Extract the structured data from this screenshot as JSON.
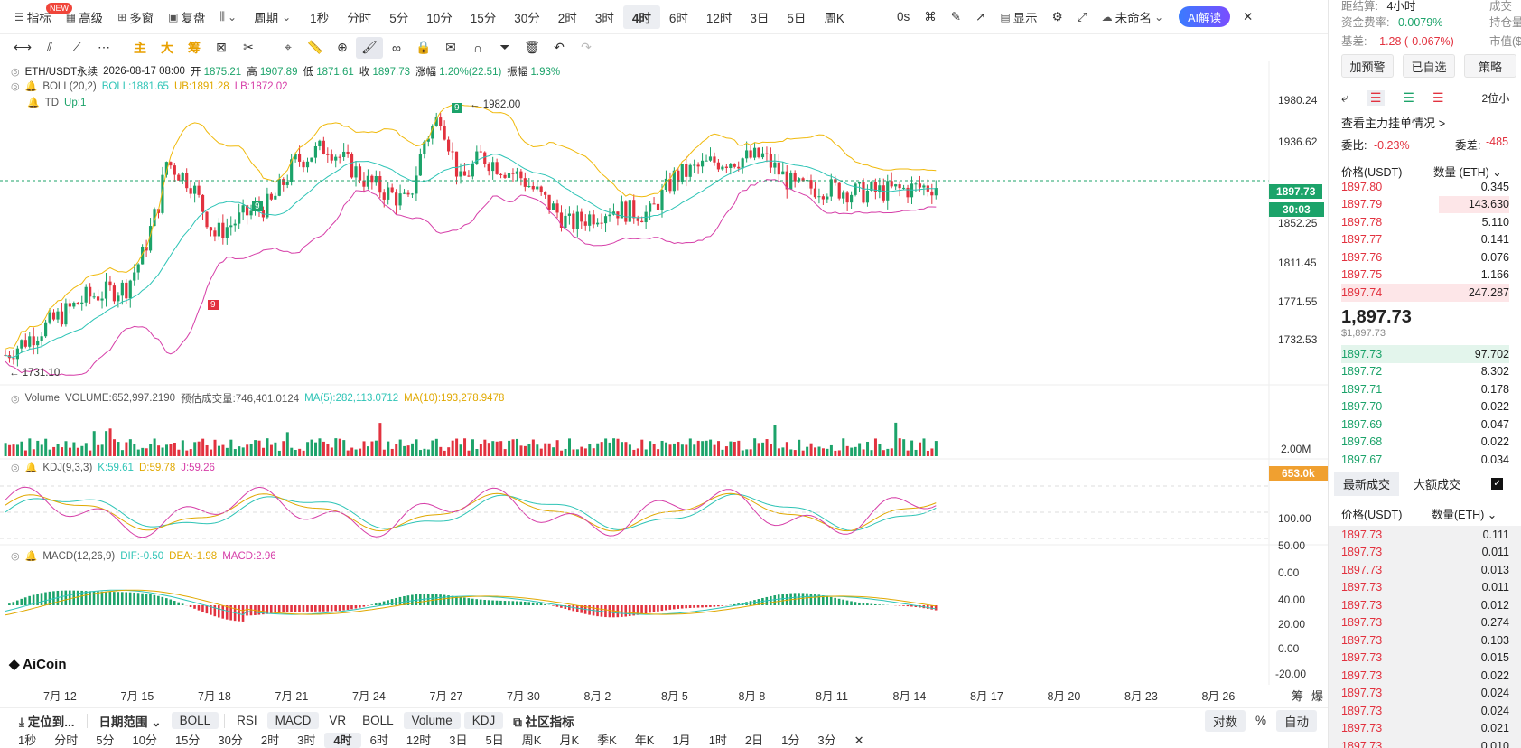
{
  "toolbar": {
    "new_badge": "NEW",
    "items": [
      "指标",
      "高级",
      "多窗",
      "复盘",
      "",
      "周期"
    ],
    "timeframes": [
      "1秒",
      "分时",
      "5分",
      "10分",
      "15分",
      "30分",
      "2时",
      "3时",
      "4时",
      "6时",
      "12时",
      "3日",
      "5日",
      "周K"
    ],
    "active_timeframe": "4时",
    "right": [
      "0s",
      "显示",
      "未命名"
    ],
    "ai_label": "AI解读"
  },
  "drawbar": {
    "labels": [
      "主",
      "大",
      "筹"
    ]
  },
  "legend": {
    "symbol_line": {
      "symbol": "ETH/USDT永续",
      "date": "2026-08-17 08:00",
      "open_label": "开",
      "open": "1875.21",
      "high_label": "高",
      "high": "1907.89",
      "low_label": "低",
      "low": "1871.61",
      "close_label": "收",
      "close": "1897.73",
      "chg_label": "涨幅",
      "chg": "1.20%(22.51)",
      "amp_label": "振幅",
      "amp": "1.93%"
    },
    "boll": {
      "name": "BOLL(20,2)",
      "boll": "BOLL:1881.65",
      "ub": "UB:1891.28",
      "lb": "LB:1872.02"
    },
    "td": {
      "name": "TD",
      "up": "Up:1"
    },
    "volume": {
      "name": "Volume",
      "vol": "VOLUME:652,997.2190",
      "est": "预估成交量:746,401.0124",
      "ma5": "MA(5):282,113.0712",
      "ma10": "MA(10):193,278.9478"
    },
    "kdj": {
      "name": "KDJ(9,3,3)",
      "k": "K:59.61",
      "d": "D:59.78",
      "j": "J:59.26"
    },
    "macd": {
      "name": "MACD(12,26,9)",
      "dif": "DIF:-0.50",
      "dea": "DEA:-1.98",
      "macd": "MACD:2.96"
    }
  },
  "price_axis": [
    "1980.24",
    "1936.62",
    "1852.25",
    "1811.45",
    "1771.55",
    "1732.53"
  ],
  "current_price_tag": "1897.73",
  "countdown_tag": "30:03",
  "annotations": {
    "high": "1982.00",
    "low": "1731.10",
    "td9_a": "9",
    "td9_b": "9",
    "td9_c": "9"
  },
  "volume_axis": {
    "top": "2.00M",
    "tag": "653.0k"
  },
  "kdj_axis": [
    "100.00",
    "50.00",
    "0.00"
  ],
  "macd_axis": [
    "40.00",
    "20.00",
    "0.00",
    "-20.00"
  ],
  "dates": [
    "7月 12",
    "7月 15",
    "7月 18",
    "7月 21",
    "7月 24",
    "7月 27",
    "7月 30",
    "8月 2",
    "8月 5",
    "8月 8",
    "8月 11",
    "8月 14",
    "8月 17",
    "8月 20",
    "8月 23",
    "8月 26"
  ],
  "corner_labels": [
    "筹",
    "爆"
  ],
  "logo_text": "AiCoin",
  "bottom_bar": {
    "items": [
      "定位到...",
      "日期范围",
      "BOLL",
      "RSI",
      "MACD",
      "VR",
      "BOLL",
      "Volume",
      "KDJ",
      "社区指标"
    ],
    "right": [
      "对数",
      "%",
      "自动"
    ]
  },
  "timeframe_bar": [
    "1秒",
    "分时",
    "5分",
    "10分",
    "15分",
    "30分",
    "2时",
    "3时",
    "4时",
    "6时",
    "12时",
    "3日",
    "5日",
    "周K",
    "月K",
    "季K",
    "年K",
    "1月",
    "1时",
    "2日",
    "1分",
    "3分"
  ],
  "timeframe_bar_active": "4时",
  "right_panel": {
    "top_rows": [
      {
        "label": "距结算:",
        "value": "4小时",
        "right": "成交"
      },
      {
        "label": "资金费率:",
        "value": "0.0079%",
        "right": "持仓量"
      },
      {
        "label": "基差:",
        "value": "-1.28 (-0.067%)",
        "right": "市值($"
      }
    ],
    "buttons": [
      "加预警",
      "已自选",
      "策略"
    ],
    "precision": "2位小",
    "main_orders": "查看主力挂单情况 >",
    "ratio_label": "委比:",
    "ratio": "-0.23%",
    "diff_label": "委差:",
    "diff": "-485",
    "ob_header_price": "价格(USDT)",
    "ob_header_qty": "数量 (ETH)",
    "asks": [
      {
        "p": "1897.80",
        "q": "0.345"
      },
      {
        "p": "1897.79",
        "q": "143.630"
      },
      {
        "p": "1897.78",
        "q": "5.110"
      },
      {
        "p": "1897.77",
        "q": "0.141"
      },
      {
        "p": "1897.76",
        "q": "0.076"
      },
      {
        "p": "1897.75",
        "q": "1.166"
      },
      {
        "p": "1897.74",
        "q": "247.287"
      }
    ],
    "last_price": "1,897.73",
    "last_usd": "$1,897.73",
    "bids": [
      {
        "p": "1897.73",
        "q": "97.702"
      },
      {
        "p": "1897.72",
        "q": "8.302"
      },
      {
        "p": "1897.71",
        "q": "0.178"
      },
      {
        "p": "1897.70",
        "q": "0.022"
      },
      {
        "p": "1897.69",
        "q": "0.047"
      },
      {
        "p": "1897.68",
        "q": "0.022"
      },
      {
        "p": "1897.67",
        "q": "0.034"
      }
    ],
    "trade_tabs": [
      "最新成交",
      "大额成交"
    ],
    "trades_header_price": "价格(USDT)",
    "trades_header_qty": "数量(ETH)",
    "trades": [
      {
        "p": "1897.73",
        "q": "0.111"
      },
      {
        "p": "1897.73",
        "q": "0.011"
      },
      {
        "p": "1897.73",
        "q": "0.013"
      },
      {
        "p": "1897.73",
        "q": "0.011"
      },
      {
        "p": "1897.73",
        "q": "0.012"
      },
      {
        "p": "1897.73",
        "q": "0.274"
      },
      {
        "p": "1897.73",
        "q": "0.103"
      },
      {
        "p": "1897.73",
        "q": "0.015"
      },
      {
        "p": "1897.73",
        "q": "0.022"
      },
      {
        "p": "1897.73",
        "q": "0.024"
      },
      {
        "p": "1897.73",
        "q": "0.024"
      },
      {
        "p": "1897.73",
        "q": "0.021"
      },
      {
        "p": "1897.73",
        "q": "0.010"
      }
    ]
  },
  "colors": {
    "up": "#1ca36a",
    "down": "#e2323f",
    "boll_mid": "#2ec4b6",
    "boll_up": "#f0b90b",
    "boll_low": "#d63ea8",
    "accent": "#3a7bff"
  }
}
